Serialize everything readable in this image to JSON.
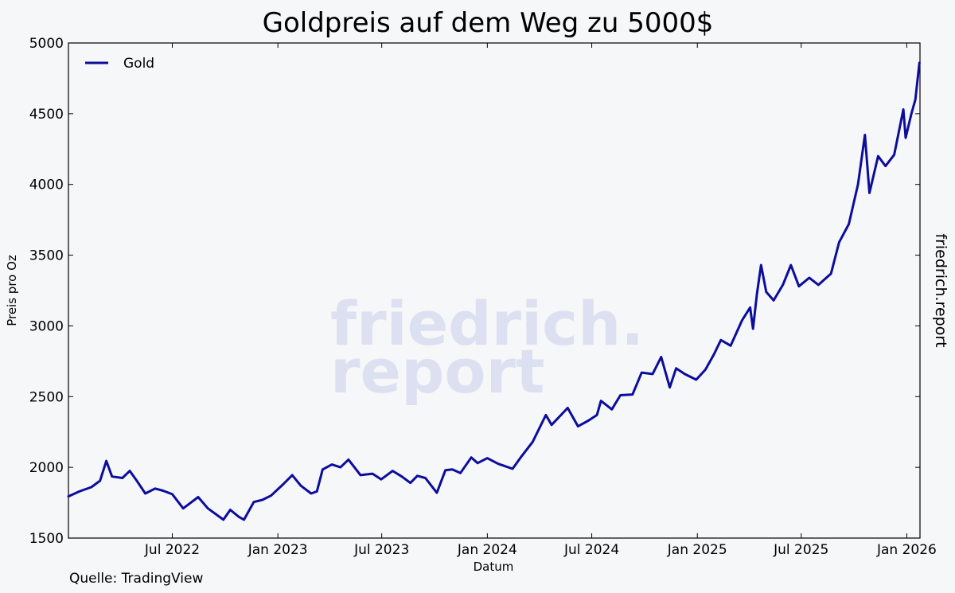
{
  "chart_data": {
    "type": "line",
    "title": "Goldpreis auf dem Weg zu 5000$",
    "xlabel": "Datum",
    "ylabel": "Preis pro Oz",
    "xlim": [
      "2022-01-01",
      "2026-01-24"
    ],
    "ylim": [
      1500,
      5000
    ],
    "yticks": [
      1500,
      2000,
      2500,
      3000,
      3500,
      4000,
      4500,
      5000
    ],
    "xticks": [
      {
        "date": "2022-07-01",
        "label": "Jul 2022"
      },
      {
        "date": "2023-01-01",
        "label": "Jan 2023"
      },
      {
        "date": "2023-07-01",
        "label": "Jul 2023"
      },
      {
        "date": "2024-01-01",
        "label": "Jan 2024"
      },
      {
        "date": "2024-07-01",
        "label": "Jul 2024"
      },
      {
        "date": "2025-01-01",
        "label": "Jan 2025"
      },
      {
        "date": "2025-07-01",
        "label": "Jul 2025"
      },
      {
        "date": "2026-01-01",
        "label": "Jan 2026"
      }
    ],
    "grid": false,
    "legend_position": "top-left",
    "series": [
      {
        "name": "Gold",
        "color": "#0d0d9c",
        "points": [
          [
            "2022-01-01",
            1795
          ],
          [
            "2022-01-20",
            1830
          ],
          [
            "2022-02-10",
            1860
          ],
          [
            "2022-02-25",
            1905
          ],
          [
            "2022-03-08",
            2045
          ],
          [
            "2022-03-18",
            1935
          ],
          [
            "2022-04-05",
            1925
          ],
          [
            "2022-04-18",
            1975
          ],
          [
            "2022-05-01",
            1900
          ],
          [
            "2022-05-15",
            1815
          ],
          [
            "2022-06-01",
            1850
          ],
          [
            "2022-06-15",
            1835
          ],
          [
            "2022-07-01",
            1810
          ],
          [
            "2022-07-20",
            1710
          ],
          [
            "2022-08-15",
            1790
          ],
          [
            "2022-09-01",
            1710
          ],
          [
            "2022-09-28",
            1630
          ],
          [
            "2022-10-10",
            1700
          ],
          [
            "2022-10-25",
            1650
          ],
          [
            "2022-11-03",
            1630
          ],
          [
            "2022-11-20",
            1755
          ],
          [
            "2022-12-05",
            1770
          ],
          [
            "2022-12-20",
            1800
          ],
          [
            "2023-01-10",
            1880
          ],
          [
            "2023-01-26",
            1945
          ],
          [
            "2023-02-10",
            1870
          ],
          [
            "2023-02-28",
            1815
          ],
          [
            "2023-03-10",
            1830
          ],
          [
            "2023-03-20",
            1985
          ],
          [
            "2023-04-05",
            2020
          ],
          [
            "2023-04-20",
            2000
          ],
          [
            "2023-05-04",
            2055
          ],
          [
            "2023-05-25",
            1945
          ],
          [
            "2023-06-15",
            1955
          ],
          [
            "2023-06-30",
            1915
          ],
          [
            "2023-07-20",
            1975
          ],
          [
            "2023-08-05",
            1935
          ],
          [
            "2023-08-20",
            1890
          ],
          [
            "2023-09-01",
            1940
          ],
          [
            "2023-09-15",
            1925
          ],
          [
            "2023-10-05",
            1820
          ],
          [
            "2023-10-20",
            1980
          ],
          [
            "2023-11-01",
            1985
          ],
          [
            "2023-11-15",
            1960
          ],
          [
            "2023-12-04",
            2070
          ],
          [
            "2023-12-15",
            2030
          ],
          [
            "2024-01-01",
            2065
          ],
          [
            "2024-01-20",
            2025
          ],
          [
            "2024-02-14",
            1990
          ],
          [
            "2024-03-01",
            2080
          ],
          [
            "2024-03-20",
            2180
          ],
          [
            "2024-04-12",
            2370
          ],
          [
            "2024-04-22",
            2300
          ],
          [
            "2024-05-20",
            2420
          ],
          [
            "2024-06-07",
            2290
          ],
          [
            "2024-06-25",
            2330
          ],
          [
            "2024-07-10",
            2370
          ],
          [
            "2024-07-17",
            2470
          ],
          [
            "2024-08-05",
            2410
          ],
          [
            "2024-08-20",
            2510
          ],
          [
            "2024-09-10",
            2515
          ],
          [
            "2024-09-26",
            2670
          ],
          [
            "2024-10-15",
            2660
          ],
          [
            "2024-10-30",
            2780
          ],
          [
            "2024-11-14",
            2565
          ],
          [
            "2024-11-25",
            2700
          ],
          [
            "2024-12-10",
            2660
          ],
          [
            "2024-12-30",
            2620
          ],
          [
            "2025-01-15",
            2690
          ],
          [
            "2025-01-30",
            2800
          ],
          [
            "2025-02-11",
            2900
          ],
          [
            "2025-02-28",
            2860
          ],
          [
            "2025-03-20",
            3040
          ],
          [
            "2025-04-03",
            3130
          ],
          [
            "2025-04-08",
            2980
          ],
          [
            "2025-04-15",
            3230
          ],
          [
            "2025-04-22",
            3430
          ],
          [
            "2025-05-01",
            3240
          ],
          [
            "2025-05-14",
            3180
          ],
          [
            "2025-05-30",
            3290
          ],
          [
            "2025-06-13",
            3430
          ],
          [
            "2025-06-27",
            3280
          ],
          [
            "2025-07-15",
            3340
          ],
          [
            "2025-07-31",
            3290
          ],
          [
            "2025-08-22",
            3370
          ],
          [
            "2025-09-05",
            3590
          ],
          [
            "2025-09-22",
            3720
          ],
          [
            "2025-10-08",
            4000
          ],
          [
            "2025-10-20",
            4350
          ],
          [
            "2025-10-28",
            3940
          ],
          [
            "2025-11-12",
            4200
          ],
          [
            "2025-11-25",
            4130
          ],
          [
            "2025-12-10",
            4210
          ],
          [
            "2025-12-26",
            4530
          ],
          [
            "2025-12-30",
            4330
          ],
          [
            "2026-01-09",
            4500
          ],
          [
            "2026-01-16",
            4600
          ],
          [
            "2026-01-23",
            4860
          ]
        ]
      }
    ]
  },
  "side_label": "friedrich.report",
  "source": "Quelle: TradingView",
  "watermark": [
    "friedrich.",
    "report"
  ]
}
